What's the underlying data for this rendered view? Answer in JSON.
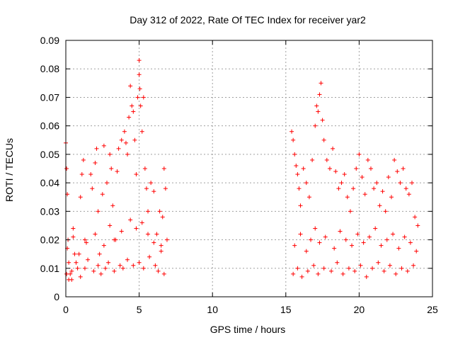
{
  "chart_data": {
    "type": "scatter",
    "title": "Day 312 of 2022, Rate Of TEC Index for receiver yar2",
    "xlabel": "GPS time / hours",
    "ylabel": "ROTI / TECUs",
    "xlim": [
      0,
      25
    ],
    "ylim": [
      0,
      0.09
    ],
    "x_ticks": [
      0,
      5,
      10,
      15,
      20,
      25
    ],
    "x_tick_labels": [
      "0",
      "5",
      "10",
      "15",
      "20",
      "25"
    ],
    "y_ticks": [
      0,
      0.01,
      0.02,
      0.03,
      0.04,
      0.05,
      0.06,
      0.07,
      0.08,
      0.09
    ],
    "y_tick_labels": [
      "0",
      "0.01",
      "0.02",
      "0.03",
      "0.04",
      "0.05",
      "0.06",
      "0.07",
      "0.08",
      "0.09"
    ],
    "grid": true,
    "marker": "+",
    "color": "#ff0000",
    "series": [
      {
        "x": [
          0.0,
          0.05,
          0.1,
          0.15,
          0.2,
          0.3,
          0.4,
          0.5,
          0.6,
          0.8,
          1.0,
          1.1,
          1.2,
          1.3,
          1.5,
          1.7,
          1.8,
          2.0,
          2.1,
          2.2,
          2.3,
          2.5,
          2.6,
          2.8,
          3.0,
          3.1,
          3.2,
          3.3,
          3.5,
          3.6,
          3.8,
          4.0,
          4.1,
          4.2,
          4.3,
          4.4,
          4.5,
          4.6,
          4.7,
          4.8,
          4.9,
          5.0,
          5.0,
          5.05,
          5.1,
          5.2,
          5.3,
          5.4,
          5.5,
          5.6,
          5.8,
          6.0,
          6.2,
          6.4,
          6.5,
          6.6,
          6.7,
          6.8,
          6.9,
          0.05,
          0.2,
          0.4,
          0.7,
          1.0,
          1.3,
          1.9,
          2.2,
          2.4,
          2.7,
          2.9,
          3.3,
          3.7,
          3.9,
          4.2,
          4.6,
          5.0,
          5.3,
          5.7,
          6.1,
          6.3,
          6.7,
          0.1,
          0.5,
          0.9,
          1.4,
          2.0,
          2.6,
          3.0,
          3.4,
          3.8,
          4.4,
          4.8,
          5.2,
          5.6,
          6.0,
          6.5,
          15.4,
          15.5,
          15.6,
          15.7,
          15.8,
          15.9,
          16.0,
          16.2,
          16.4,
          16.6,
          16.8,
          17.0,
          17.1,
          17.2,
          17.3,
          17.4,
          17.5,
          17.6,
          17.8,
          18.0,
          18.2,
          18.4,
          18.6,
          18.8,
          19.0,
          19.2,
          19.4,
          19.6,
          19.8,
          20.0,
          20.2,
          20.4,
          20.6,
          20.8,
          21.0,
          21.2,
          21.4,
          21.6,
          21.8,
          22.0,
          22.2,
          22.4,
          22.6,
          22.8,
          23.0,
          23.2,
          23.4,
          23.6,
          23.8,
          24.0,
          15.5,
          15.8,
          16.1,
          16.5,
          16.9,
          17.2,
          17.6,
          18.1,
          18.5,
          18.9,
          19.3,
          19.7,
          20.1,
          20.5,
          20.9,
          21.3,
          21.7,
          22.1,
          22.5,
          22.9,
          23.3,
          23.7,
          15.6,
          16.0,
          16.4,
          16.7,
          17.0,
          17.3,
          17.7,
          18.3,
          18.7,
          19.1,
          19.5,
          19.9,
          20.3,
          20.7,
          21.1,
          21.5,
          21.9,
          22.3,
          22.7,
          23.1,
          23.5,
          23.9
        ],
        "y": [
          0.054,
          0.045,
          0.036,
          0.02,
          0.012,
          0.008,
          0.006,
          0.024,
          0.015,
          0.01,
          0.035,
          0.043,
          0.048,
          0.02,
          0.013,
          0.043,
          0.038,
          0.047,
          0.052,
          0.03,
          0.015,
          0.036,
          0.053,
          0.04,
          0.05,
          0.045,
          0.032,
          0.02,
          0.044,
          0.052,
          0.055,
          0.058,
          0.054,
          0.05,
          0.063,
          0.074,
          0.067,
          0.065,
          0.055,
          0.043,
          0.07,
          0.083,
          0.078,
          0.073,
          0.067,
          0.058,
          0.07,
          0.045,
          0.038,
          0.03,
          0.04,
          0.037,
          0.022,
          0.03,
          0.018,
          0.028,
          0.045,
          0.038,
          0.02,
          0.008,
          0.006,
          0.009,
          0.012,
          0.007,
          0.01,
          0.009,
          0.011,
          0.008,
          0.01,
          0.012,
          0.009,
          0.011,
          0.01,
          0.013,
          0.011,
          0.012,
          0.01,
          0.014,
          0.011,
          0.009,
          0.008,
          0.017,
          0.021,
          0.015,
          0.019,
          0.022,
          0.018,
          0.025,
          0.02,
          0.023,
          0.027,
          0.024,
          0.026,
          0.022,
          0.019,
          0.016,
          0.058,
          0.055,
          0.05,
          0.046,
          0.043,
          0.038,
          0.032,
          0.045,
          0.04,
          0.035,
          0.048,
          0.06,
          0.067,
          0.065,
          0.071,
          0.075,
          0.062,
          0.055,
          0.048,
          0.045,
          0.052,
          0.044,
          0.038,
          0.04,
          0.043,
          0.035,
          0.03,
          0.038,
          0.045,
          0.05,
          0.042,
          0.036,
          0.048,
          0.045,
          0.038,
          0.04,
          0.032,
          0.037,
          0.03,
          0.042,
          0.035,
          0.048,
          0.044,
          0.04,
          0.045,
          0.038,
          0.036,
          0.04,
          0.028,
          0.025,
          0.008,
          0.01,
          0.007,
          0.009,
          0.011,
          0.008,
          0.01,
          0.009,
          0.012,
          0.008,
          0.01,
          0.009,
          0.011,
          0.007,
          0.01,
          0.012,
          0.009,
          0.011,
          0.008,
          0.01,
          0.009,
          0.011,
          0.018,
          0.022,
          0.016,
          0.02,
          0.024,
          0.019,
          0.021,
          0.017,
          0.023,
          0.02,
          0.018,
          0.022,
          0.019,
          0.021,
          0.024,
          0.018,
          0.02,
          0.022,
          0.017,
          0.021,
          0.019,
          0.016
        ]
      }
    ]
  }
}
